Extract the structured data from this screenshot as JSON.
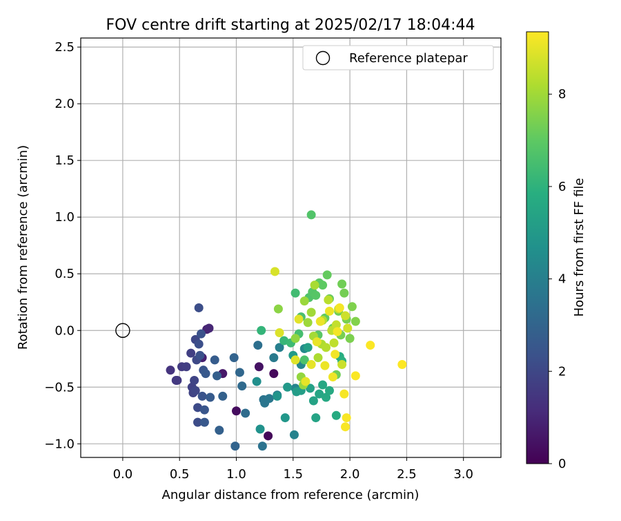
{
  "chart_data": {
    "type": "scatter",
    "title": "FOV centre drift starting at 2025/02/17 18:04:44",
    "xlabel": "Angular distance from reference (arcmin)",
    "ylabel": "Rotation from reference (arcmin)",
    "xlim": [
      -0.37,
      3.33
    ],
    "ylim": [
      -1.12,
      2.58
    ],
    "xticks": [
      "0.0",
      "0.5",
      "1.0",
      "1.5",
      "2.0",
      "2.5",
      "3.0"
    ],
    "xtick_values": [
      0,
      0.5,
      1.0,
      1.5,
      2.0,
      2.5,
      3.0
    ],
    "yticks": [
      "−1.0",
      "−0.5",
      "0.0",
      "0.5",
      "1.0",
      "1.5",
      "2.0",
      "2.5"
    ],
    "ytick_values": [
      -1.0,
      -0.5,
      0.0,
      0.5,
      1.0,
      1.5,
      2.0,
      2.5
    ],
    "grid": true,
    "legend": {
      "placement": "top-right",
      "label": "Reference platepar"
    },
    "reference_point": {
      "x": 0.0,
      "y": 0.0
    },
    "colorbar": {
      "label": "Hours from first FF file",
      "colormap": "viridis",
      "range": [
        0,
        9.35
      ],
      "ticks": [
        "0",
        "2",
        "4",
        "6",
        "8"
      ],
      "tick_values": [
        0,
        2,
        4,
        6,
        8
      ]
    },
    "series": [
      {
        "x": [
          1.28,
          1.33,
          1.0,
          1.2,
          0.88,
          0.7,
          0.74,
          0.76
        ],
        "y": [
          -0.93,
          -0.38,
          -0.71,
          -0.32,
          -0.38,
          -0.24,
          0.01,
          0.02
        ],
        "c": [
          0.15,
          0.2,
          0.3,
          0.45,
          0.6,
          0.8,
          0.9,
          1.0
        ]
      },
      {
        "x": [
          0.42,
          0.47,
          0.48,
          0.52,
          0.56,
          0.6,
          0.61,
          0.62,
          0.63,
          0.64,
          0.64,
          0.65,
          0.66,
          0.66,
          0.67,
          0.67,
          0.68,
          0.69,
          0.7,
          0.71,
          0.72,
          0.72,
          0.73,
          0.77,
          0.81,
          0.83,
          0.85,
          0.88
        ],
        "y": [
          -0.35,
          -0.44,
          -0.44,
          -0.32,
          -0.32,
          -0.2,
          -0.5,
          -0.55,
          -0.44,
          -0.53,
          -0.08,
          -0.26,
          -0.68,
          -0.81,
          0.2,
          -0.12,
          -0.22,
          -0.03,
          -0.58,
          -0.35,
          -0.7,
          -0.81,
          -0.38,
          -0.59,
          -0.26,
          -0.4,
          -0.88,
          -0.58
        ],
        "c": [
          1.4,
          1.5,
          1.55,
          1.6,
          1.7,
          1.75,
          1.8,
          1.85,
          1.9,
          1.95,
          2.0,
          2.05,
          2.1,
          2.15,
          2.2,
          2.25,
          2.3,
          2.35,
          2.4,
          2.45,
          2.5,
          2.55,
          2.6,
          2.65,
          2.7,
          2.8,
          2.85,
          2.9
        ]
      },
      {
        "x": [
          0.98,
          0.99,
          1.03,
          1.05,
          1.08,
          1.19,
          1.23,
          1.24,
          1.25,
          1.29,
          1.33,
          1.36,
          1.38,
          1.51,
          1.52,
          1.57,
          1.6
        ],
        "y": [
          -0.24,
          -1.02,
          -0.37,
          -0.49,
          -0.73,
          -0.13,
          -1.02,
          -0.61,
          -0.64,
          -0.6,
          -0.24,
          -0.57,
          -0.15,
          -0.92,
          -0.51,
          -0.3,
          -0.16
        ],
        "c": [
          2.95,
          3.0,
          3.1,
          3.2,
          3.3,
          3.4,
          3.5,
          3.6,
          3.65,
          3.7,
          3.8,
          3.9,
          4.0,
          4.1,
          4.2,
          4.3,
          4.4
        ]
      },
      {
        "x": [
          1.18,
          1.21,
          1.36,
          1.43,
          1.45,
          1.5,
          1.53,
          1.57,
          1.63,
          1.65,
          1.68,
          1.7,
          1.73,
          1.76,
          1.79,
          1.82,
          1.88,
          1.91,
          1.93
        ],
        "y": [
          -0.45,
          -0.87,
          -0.58,
          -0.77,
          -0.5,
          -0.22,
          -0.54,
          -0.53,
          -0.15,
          -0.51,
          -0.62,
          -0.77,
          -0.56,
          -0.48,
          -0.59,
          -0.53,
          -0.75,
          -0.23,
          -0.27
        ],
        "c": [
          4.6,
          4.7,
          4.8,
          4.9,
          5.0,
          5.05,
          5.1,
          5.2,
          5.25,
          5.3,
          5.35,
          5.4,
          5.5,
          5.55,
          5.6,
          5.65,
          5.7,
          5.8,
          5.9
        ]
      },
      {
        "x": [
          1.22,
          1.42,
          1.48,
          1.52,
          1.55,
          1.57,
          1.6,
          1.64,
          1.66,
          1.67,
          1.7,
          1.72,
          1.73,
          1.76,
          1.78,
          1.8,
          1.82,
          1.85,
          1.9,
          1.93,
          1.95,
          1.97,
          2.0,
          2.02,
          2.05,
          1.88,
          1.92
        ],
        "y": [
          0.0,
          -0.09,
          -0.11,
          0.33,
          -0.03,
          0.12,
          -0.26,
          0.29,
          1.02,
          0.34,
          0.31,
          -0.04,
          0.42,
          0.4,
          0.11,
          0.49,
          0.28,
          0.02,
          0.17,
          0.41,
          0.33,
          0.1,
          -0.07,
          0.21,
          0.08,
          -0.39,
          -0.04
        ],
        "c": [
          6.1,
          6.2,
          6.3,
          6.4,
          6.5,
          6.6,
          6.65,
          6.7,
          6.75,
          6.8,
          6.85,
          6.9,
          6.95,
          7.0,
          7.05,
          7.1,
          7.15,
          7.2,
          7.25,
          7.3,
          7.35,
          7.4,
          7.45,
          7.5,
          7.55,
          7.3,
          7.4
        ]
      },
      {
        "x": [
          1.37,
          1.52,
          1.57,
          1.59,
          1.6,
          1.63,
          1.66,
          1.68,
          1.69,
          1.72,
          1.75,
          1.76,
          1.79,
          1.81,
          1.84,
          1.86,
          1.88,
          1.9,
          1.93,
          1.96,
          1.98
        ],
        "y": [
          0.19,
          -0.07,
          -0.41,
          -0.48,
          0.26,
          0.07,
          0.16,
          -0.05,
          0.4,
          -0.24,
          -0.12,
          0.09,
          -0.15,
          0.27,
          0.0,
          -0.11,
          0.05,
          0.19,
          -0.3,
          0.13,
          0.02
        ],
        "c": [
          7.7,
          7.75,
          7.8,
          7.85,
          7.9,
          7.95,
          8.0,
          8.05,
          8.1,
          8.15,
          8.2,
          8.25,
          8.3,
          8.35,
          8.4,
          8.45,
          8.5,
          8.55,
          8.6,
          8.65,
          8.7
        ]
      },
      {
        "x": [
          1.34,
          1.38,
          1.52,
          1.55,
          1.61,
          1.66,
          1.71,
          1.74,
          1.78,
          1.82,
          1.85,
          1.87,
          1.89,
          1.91,
          1.95,
          1.96,
          1.97,
          2.05,
          2.18,
          2.46
        ],
        "y": [
          0.52,
          -0.02,
          -0.26,
          0.1,
          -0.45,
          -0.3,
          -0.1,
          0.08,
          -0.31,
          0.17,
          -0.41,
          -0.21,
          -0.01,
          0.2,
          -0.56,
          -0.85,
          -0.77,
          -0.4,
          -0.13,
          -0.3
        ],
        "c": [
          8.8,
          8.85,
          8.9,
          8.95,
          9.0,
          9.02,
          9.05,
          9.08,
          9.1,
          9.12,
          9.15,
          9.18,
          9.2,
          9.22,
          9.25,
          9.27,
          9.28,
          9.3,
          9.32,
          9.34
        ]
      }
    ]
  }
}
